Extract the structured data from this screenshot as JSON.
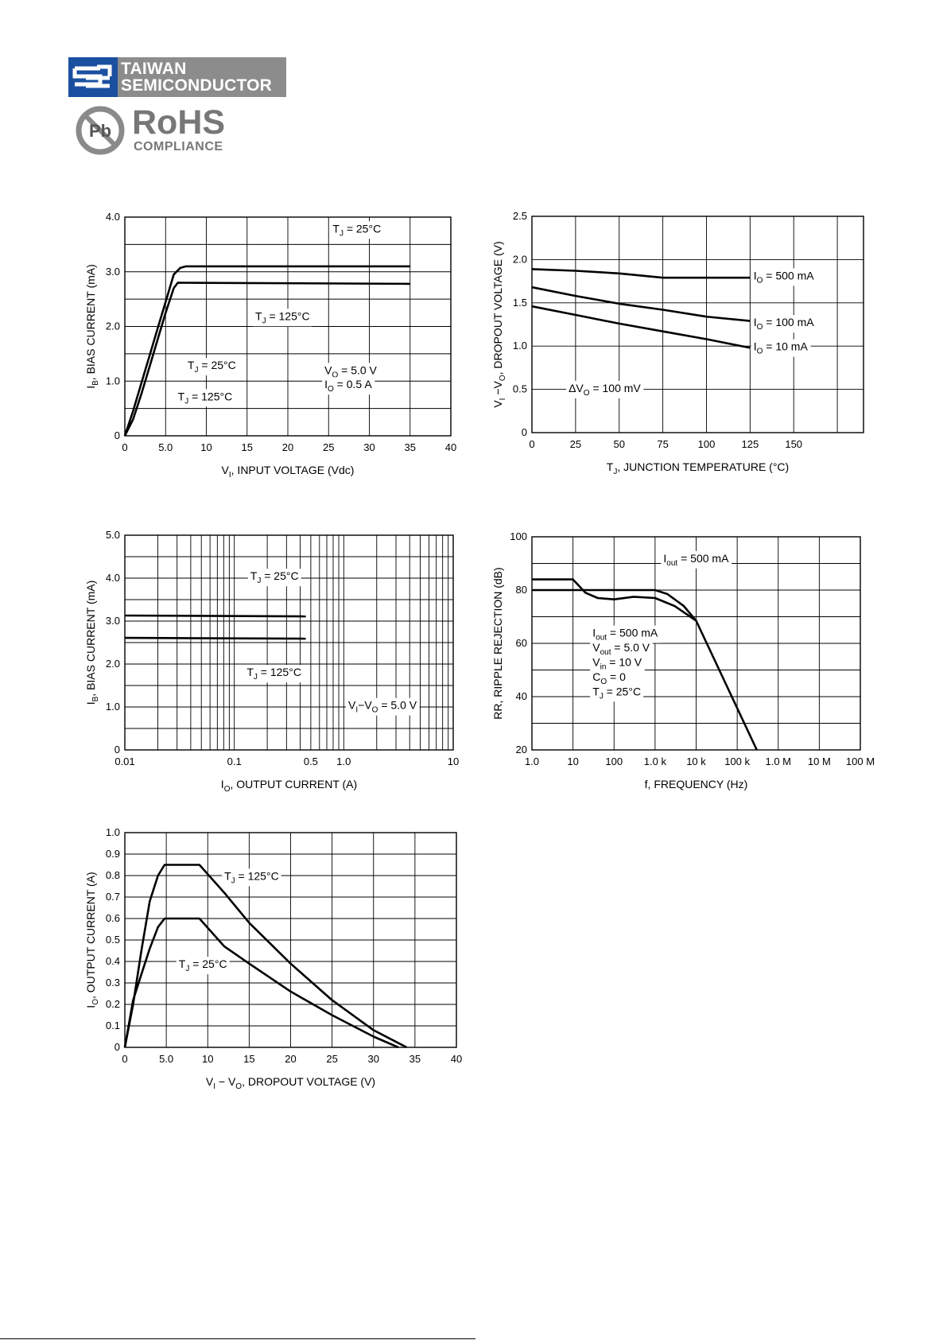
{
  "header": {
    "company_line1": "TAIWAN",
    "company_line2": "SEMICONDUCTOR",
    "pb_label": "Pb",
    "rohs_label": "RoHS",
    "rohs_sub": "COMPLIANCE",
    "brand_color": "#1b4fa0",
    "brand_gray": "#8c8c8c"
  },
  "chart_data": [
    {
      "id": "c1",
      "type": "line",
      "x_scale": "linear",
      "xlim": [
        0,
        40
      ],
      "ylim": [
        0,
        4
      ],
      "y_ticks": [
        0,
        1.0,
        2.0,
        3.0,
        4.0
      ],
      "y_tick_labels": [
        "0",
        "1.0",
        "2.0",
        "3.0",
        "4.0"
      ],
      "x_ticks": [
        0,
        5,
        10,
        15,
        20,
        25,
        30,
        35,
        40
      ],
      "x_tick_labels": [
        "0",
        "5.0",
        "10",
        "15",
        "20",
        "25",
        "30",
        "35",
        "40"
      ],
      "h_grid": [
        0,
        0.5,
        1,
        1.5,
        2,
        2.5,
        3,
        3.5,
        4
      ],
      "v_grid": [
        0,
        5,
        10,
        15,
        20,
        25,
        30,
        35,
        40
      ],
      "xlabel_main": "V",
      "xlabel_sub": "I",
      "xlabel_rest": ", INPUT VOLTAGE (Vdc)",
      "ylabel_main": "I",
      "ylabel_sub": "B",
      "ylabel_rest": ", BIAS CURRENT (mA)",
      "series": [
        {
          "name": "TJ = 25°C",
          "x": [
            0,
            1,
            2,
            3,
            4,
            5,
            6,
            6.8,
            7.5,
            35
          ],
          "y": [
            0,
            0.45,
            0.95,
            1.45,
            1.95,
            2.45,
            2.95,
            3.07,
            3.1,
            3.1
          ]
        },
        {
          "name": "TJ = 125°C",
          "x": [
            0,
            1,
            2,
            3,
            4,
            5,
            6,
            6.5,
            35
          ],
          "y": [
            0,
            0.3,
            0.75,
            1.25,
            1.75,
            2.25,
            2.7,
            2.8,
            2.78
          ]
        }
      ],
      "annotations": [
        {
          "main": "T",
          "sub": "J",
          "rest": " = 25°C",
          "x": 25.5,
          "y": 3.72
        },
        {
          "main": "T",
          "sub": "J",
          "rest": " = 125°C",
          "x": 16,
          "y": 2.12
        },
        {
          "main": "T",
          "sub": "J",
          "rest": " = 25°C",
          "x": 7.7,
          "y": 1.22
        },
        {
          "main": "T",
          "sub": "J",
          "rest": " = 125°C",
          "x": 6.5,
          "y": 0.65
        },
        {
          "main": "V",
          "sub": "O",
          "rest": " = 5.0 V",
          "x": 24.5,
          "y": 1.13
        },
        {
          "main": "I",
          "sub": "O",
          "rest": " = 0.5 A",
          "x": 24.5,
          "y": 0.87
        }
      ]
    },
    {
      "id": "c2",
      "type": "line",
      "x_scale": "linear",
      "xlim": [
        0,
        190
      ],
      "ylim": [
        0,
        2.5
      ],
      "y_ticks": [
        0,
        0.5,
        1.0,
        1.5,
        2.0,
        2.5
      ],
      "y_tick_labels": [
        "0",
        "0.5",
        "1.0",
        "1.5",
        "2.0",
        "2.5"
      ],
      "x_ticks": [
        0,
        25,
        50,
        75,
        100,
        125,
        150
      ],
      "x_tick_labels": [
        "0",
        "25",
        "50",
        "75",
        "100",
        "125",
        "150"
      ],
      "h_grid": [
        0,
        0.5,
        1,
        1.5,
        2,
        2.5
      ],
      "v_grid": [
        0,
        25,
        50,
        75,
        100,
        125,
        150,
        175,
        190
      ],
      "xlabel_main": "T",
      "xlabel_sub": "J",
      "xlabel_rest": ", JUNCTION TEMPERATURE (°C)",
      "ylabel_main": "V",
      "ylabel_sub": "I",
      "ylabel_rest": " −V",
      "ylabel_sub2": "O",
      "ylabel_rest2": ", DROPOUT VOLTAGE (V)",
      "series": [
        {
          "name": "IO = 500 mA",
          "x": [
            0,
            25,
            50,
            75,
            100,
            125
          ],
          "y": [
            1.89,
            1.87,
            1.84,
            1.79,
            1.79,
            1.79
          ]
        },
        {
          "name": "IO = 100 mA",
          "x": [
            0,
            25,
            50,
            75,
            100,
            125
          ],
          "y": [
            1.68,
            1.58,
            1.49,
            1.42,
            1.34,
            1.29
          ]
        },
        {
          "name": "IO = 10 mA",
          "x": [
            0,
            25,
            50,
            75,
            100,
            125
          ],
          "y": [
            1.46,
            1.36,
            1.26,
            1.17,
            1.08,
            0.98
          ]
        }
      ],
      "annotations": [
        {
          "main": "I",
          "sub": "O",
          "rest": " = 500 mA",
          "x": 127,
          "y": 1.77
        },
        {
          "main": "I",
          "sub": "O",
          "rest": " = 100 mA",
          "x": 127,
          "y": 1.23
        },
        {
          "main": "I",
          "sub": "O",
          "rest": " = 10 mA",
          "x": 127,
          "y": 0.95
        },
        {
          "main": "ΔV",
          "sub": "O",
          "rest": " = 100 mV",
          "x": 21,
          "y": 0.47
        }
      ]
    },
    {
      "id": "c3",
      "type": "line",
      "x_scale": "log",
      "xlim": [
        0.01,
        10
      ],
      "ylim": [
        0,
        5
      ],
      "y_ticks": [
        0,
        1.0,
        2.0,
        3.0,
        4.0,
        5.0
      ],
      "y_tick_labels": [
        "0",
        "1.0",
        "2.0",
        "3.0",
        "4.0",
        "5.0"
      ],
      "x_ticks": [
        0.01,
        0.1,
        0.5,
        1.0,
        10
      ],
      "x_tick_labels": [
        "0.01",
        "0.1",
        "0.5",
        "1.0",
        "10"
      ],
      "h_grid": [
        0,
        0.5,
        1,
        1.5,
        2,
        2.5,
        3,
        3.5,
        4,
        4.5,
        5
      ],
      "v_grid": [
        0.01,
        0.02,
        0.03,
        0.04,
        0.05,
        0.06,
        0.07,
        0.08,
        0.09,
        0.1,
        0.2,
        0.3,
        0.4,
        0.5,
        0.6,
        0.7,
        0.8,
        0.9,
        1,
        2,
        3,
        4,
        5,
        6,
        7,
        8,
        9,
        10
      ],
      "xlabel_main": "I",
      "xlabel_sub": "O",
      "xlabel_rest": ", OUTPUT CURRENT (A)",
      "ylabel_main": "I",
      "ylabel_sub": "B",
      "ylabel_rest": ", BIAS CURRENT (mA)",
      "series": [
        {
          "name": "TJ = 25°C",
          "x": [
            0.01,
            0.45
          ],
          "y": [
            3.13,
            3.11
          ]
        },
        {
          "name": "TJ = 125°C",
          "x": [
            0.01,
            0.45
          ],
          "y": [
            2.61,
            2.59
          ]
        }
      ],
      "annotations": [
        {
          "main": "T",
          "sub": "J",
          "rest": " = 25°C",
          "x": 0.14,
          "y": 3.96
        },
        {
          "main": "T",
          "sub": "J",
          "rest": " = 125°C",
          "x": 0.13,
          "y": 1.72
        },
        {
          "main": "V",
          "sub": "I",
          "rest": "−V",
          "sub2": "O",
          "rest2": " = 5.0 V",
          "x": 1.1,
          "y": 0.95
        }
      ]
    },
    {
      "id": "c4",
      "type": "line",
      "x_scale": "log",
      "xlim": [
        1,
        100000000
      ],
      "ylim": [
        20,
        100
      ],
      "y_ticks": [
        20,
        40,
        60,
        80,
        100
      ],
      "y_tick_labels": [
        "20",
        "40",
        "60",
        "80",
        "100"
      ],
      "x_ticks": [
        1,
        10,
        100,
        1000,
        10000,
        100000,
        1000000,
        10000000,
        100000000
      ],
      "x_tick_labels": [
        "1.0",
        "10",
        "100",
        "1.0 k",
        "10 k",
        "100 k",
        "1.0 M",
        "10 M",
        "100 M"
      ],
      "h_grid": [
        20,
        30,
        40,
        50,
        60,
        70,
        80,
        90,
        100
      ],
      "v_grid": [
        1,
        10,
        100,
        1000,
        10000,
        100000,
        1000000,
        10000000,
        100000000
      ],
      "xlabel_plain": "f, FREQUENCY (Hz)",
      "ylabel_plain": "RR, RIPPLE REJECTION (dB)",
      "series": [
        {
          "name": "Iout = 500 mA, Vout = 5.0 V",
          "x": [
            1,
            10,
            20,
            40,
            100,
            300,
            1000,
            3000,
            10000,
            300000
          ],
          "y": [
            84,
            84,
            79,
            77,
            76.5,
            77.5,
            77,
            74,
            68.5,
            20
          ]
        },
        {
          "name": "Iout = 500 mA",
          "x": [
            1,
            10,
            100,
            1000,
            2000,
            5000,
            10000
          ],
          "y": [
            80,
            80,
            80,
            80,
            78.5,
            74,
            68.5
          ]
        }
      ],
      "annotations": [
        {
          "main": "I",
          "sub": "out",
          "rest": " = 500 mA",
          "x": 1600,
          "y": 90.5
        },
        {
          "main": "I",
          "sub": "out",
          "rest": " = 500 mA",
          "x": 30,
          "y": 62.5
        },
        {
          "main": "V",
          "sub": "out",
          "rest": " = 5.0 V",
          "x": 30,
          "y": 57
        },
        {
          "main": "V",
          "sub": "in",
          "rest": " = 10 V",
          "x": 30,
          "y": 51.5
        },
        {
          "main": "C",
          "sub": "O",
          "rest": " = 0",
          "x": 30,
          "y": 46
        },
        {
          "main": "T",
          "sub": "J",
          "rest": " = 25°C",
          "x": 30,
          "y": 40.5
        }
      ]
    },
    {
      "id": "c5",
      "type": "line",
      "x_scale": "linear",
      "xlim": [
        0,
        40
      ],
      "ylim": [
        0,
        1
      ],
      "y_ticks": [
        0,
        0.1,
        0.2,
        0.3,
        0.4,
        0.5,
        0.6,
        0.7,
        0.8,
        0.9,
        1.0
      ],
      "y_tick_labels": [
        "0",
        "0.1",
        "0.2",
        "0.3",
        "0.4",
        "0.5",
        "0.6",
        "0.7",
        "0.8",
        "0.9",
        "1.0"
      ],
      "x_ticks": [
        0,
        5,
        10,
        15,
        20,
        25,
        30,
        35,
        40
      ],
      "x_tick_labels": [
        "0",
        "5.0",
        "10",
        "15",
        "20",
        "25",
        "30",
        "35",
        "40"
      ],
      "h_grid": [
        0,
        0.1,
        0.2,
        0.3,
        0.4,
        0.5,
        0.6,
        0.7,
        0.8,
        0.9,
        1.0
      ],
      "v_grid": [
        0,
        5,
        10,
        15,
        20,
        25,
        30,
        35,
        40
      ],
      "xlabel_main": "V",
      "xlabel_sub": "I",
      "xlabel_rest": " − V",
      "xlabel_sub2": "O",
      "xlabel_rest2": ", DROPOUT VOLTAGE (V)",
      "ylabel_main": "I",
      "ylabel_sub": "O",
      "ylabel_rest": ", OUTPUT CURRENT (A)",
      "series": [
        {
          "name": "TJ = 125°C",
          "x": [
            0,
            1,
            2,
            3,
            4,
            4.8,
            9,
            12,
            15,
            20,
            25,
            30,
            34
          ],
          "y": [
            0,
            0.2,
            0.45,
            0.68,
            0.8,
            0.85,
            0.85,
            0.72,
            0.58,
            0.39,
            0.22,
            0.08,
            0
          ]
        },
        {
          "name": "TJ = 25°C",
          "x": [
            0,
            1,
            2,
            3,
            4,
            4.8,
            9,
            12,
            15,
            20,
            25,
            30,
            33
          ],
          "y": [
            0,
            0.22,
            0.34,
            0.46,
            0.56,
            0.6,
            0.6,
            0.47,
            0.39,
            0.26,
            0.15,
            0.05,
            0
          ]
        }
      ],
      "annotations": [
        {
          "main": "T",
          "sub": "J",
          "rest": " = 125°C",
          "x": 12,
          "y": 0.78
        },
        {
          "main": "T",
          "sub": "J",
          "rest": " = 25°C",
          "x": 6.5,
          "y": 0.37
        }
      ]
    }
  ]
}
